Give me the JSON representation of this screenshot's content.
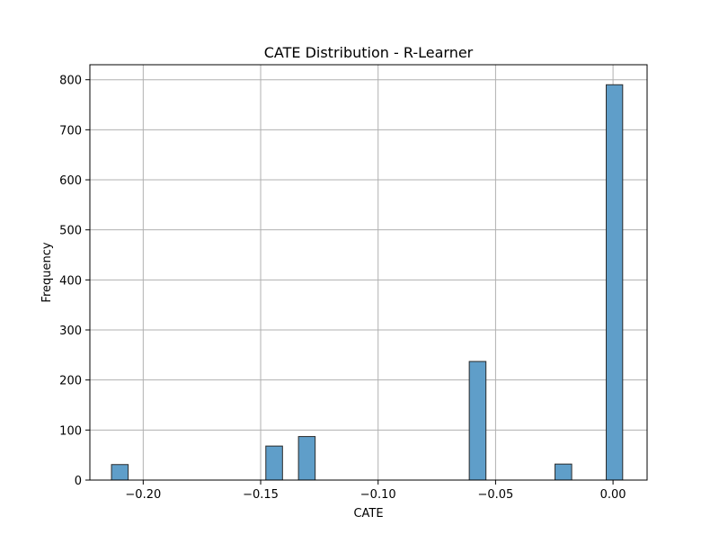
{
  "chart_data": {
    "type": "bar",
    "title": "CATE Distribution - R-Learner",
    "xlabel": "CATE",
    "ylabel": "Frequency",
    "xlim": [
      -0.2227,
      0.0145
    ],
    "ylim": [
      0,
      830
    ],
    "x_ticks": [
      -0.2,
      -0.15,
      -0.1,
      -0.05,
      0.0
    ],
    "x_tick_labels": [
      "−0.20",
      "−0.15",
      "−0.10",
      "−0.05",
      "0.00"
    ],
    "y_ticks": [
      0,
      100,
      200,
      300,
      400,
      500,
      600,
      700,
      800
    ],
    "y_tick_labels": [
      "0",
      "100",
      "200",
      "300",
      "400",
      "500",
      "600",
      "700",
      "800"
    ],
    "grid": true,
    "bar_color": "#5f9ec9",
    "bar_edge_color": "#2b2b2b",
    "bins": [
      {
        "x0": -0.2135,
        "x1": -0.2064,
        "count": 31
      },
      {
        "x0": -0.1478,
        "x1": -0.1407,
        "count": 68
      },
      {
        "x0": -0.1339,
        "x1": -0.1268,
        "count": 87
      },
      {
        "x0": -0.0612,
        "x1": -0.0541,
        "count": 237
      },
      {
        "x0": -0.0247,
        "x1": -0.0176,
        "count": 32
      },
      {
        "x0": -0.0029,
        "x1": 0.0041,
        "count": 790
      }
    ]
  }
}
